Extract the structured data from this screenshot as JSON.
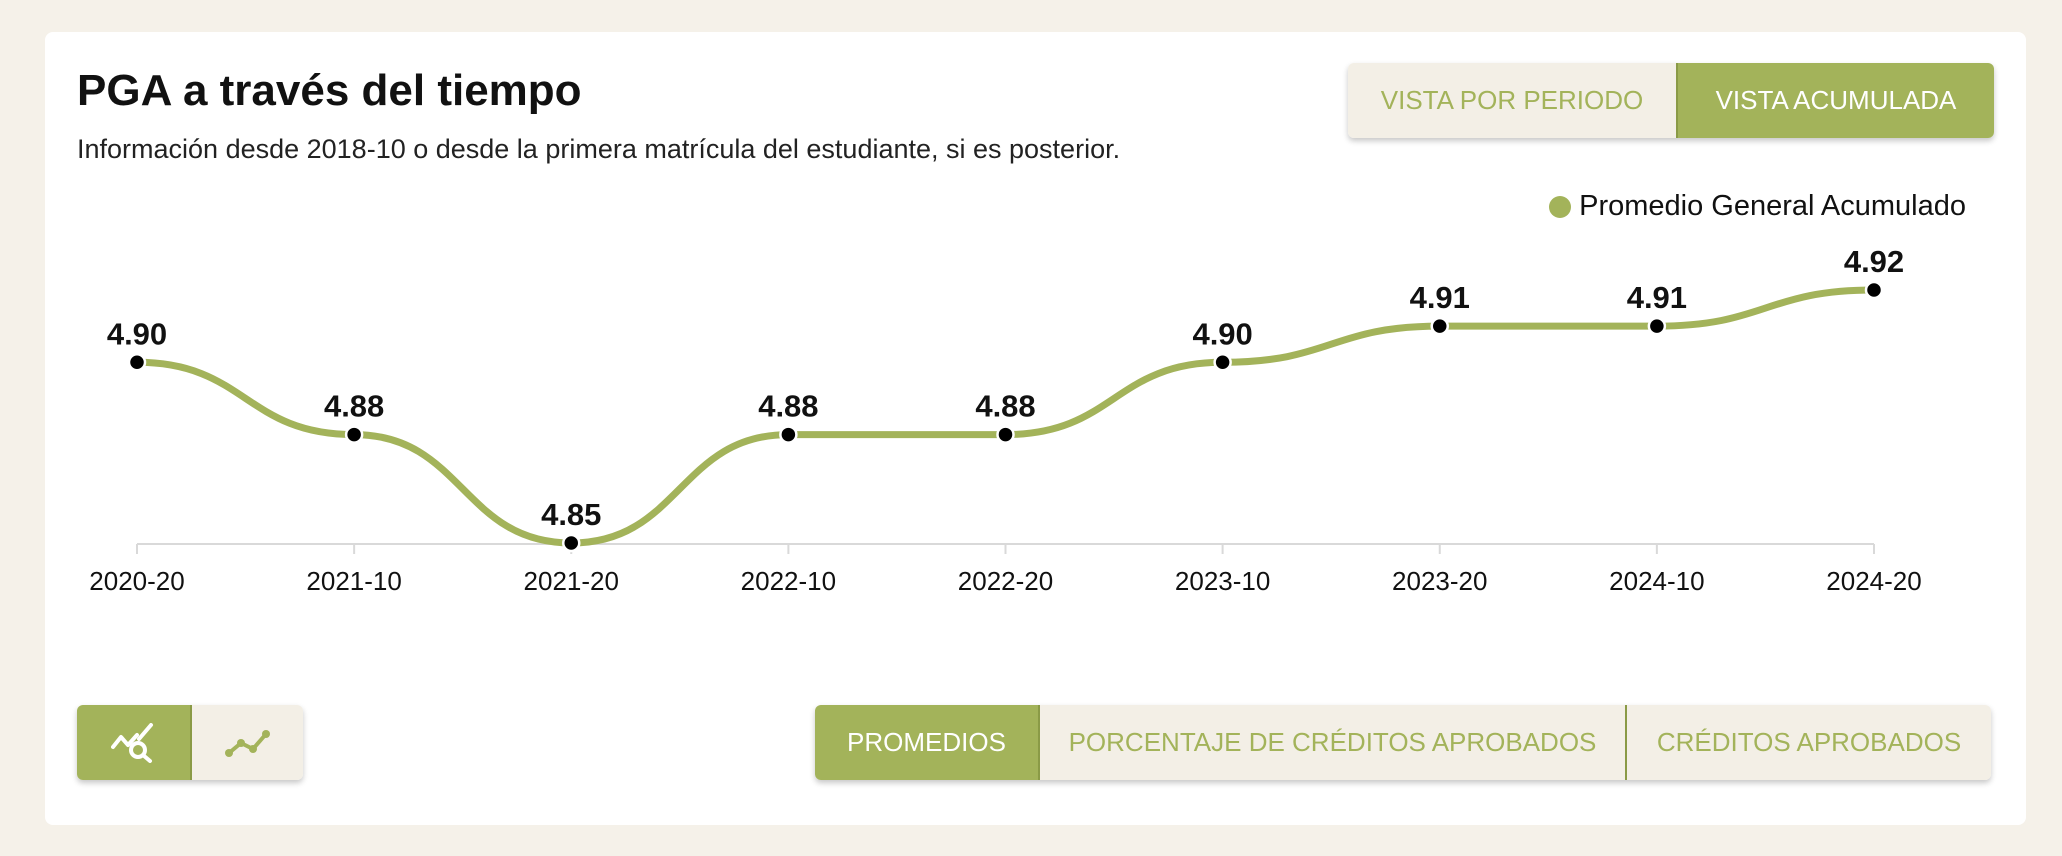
{
  "header": {
    "title": "PGA a través del tiempo",
    "subtitle": "Información desde 2018-10 o desde la primera matrícula del estudiante, si es posterior."
  },
  "view_toggle": {
    "period_label": "VISTA POR PERIODO",
    "cumulative_label": "VISTA ACUMULADA",
    "active": "cumulative"
  },
  "metric_toggle": {
    "averages_label": "PROMEDIOS",
    "credits_percent_label": "PORCENTAJE DE CRÉDITOS APROBADOS",
    "credits_label": "CRÉDITOS APROBADOS",
    "active": "averages"
  },
  "chart_toggle": {
    "zoom_icon": "chart-zoom-icon",
    "line_icon": "line-chart-icon"
  },
  "colors": {
    "accent": "#a3b35a",
    "accent_light": "#f3efe6",
    "background": "#f5f1e9",
    "point": "#000000"
  },
  "chart_data": {
    "type": "line",
    "title": "",
    "xlabel": "",
    "ylabel": "",
    "categories": [
      "2020-20",
      "2021-10",
      "2021-20",
      "2022-10",
      "2022-20",
      "2023-10",
      "2023-20",
      "2024-10",
      "2024-20"
    ],
    "series": [
      {
        "name": "Promedio General Acumulado",
        "values": [
          4.9,
          4.88,
          4.85,
          4.88,
          4.88,
          4.9,
          4.91,
          4.91,
          4.92
        ],
        "labels": [
          "4.90",
          "4.88",
          "4.85",
          "4.88",
          "4.88",
          "4.90",
          "4.91",
          "4.91",
          "4.92"
        ]
      }
    ],
    "ylim": [
      4.85,
      4.92
    ],
    "legend": "top-right",
    "grid": false
  }
}
